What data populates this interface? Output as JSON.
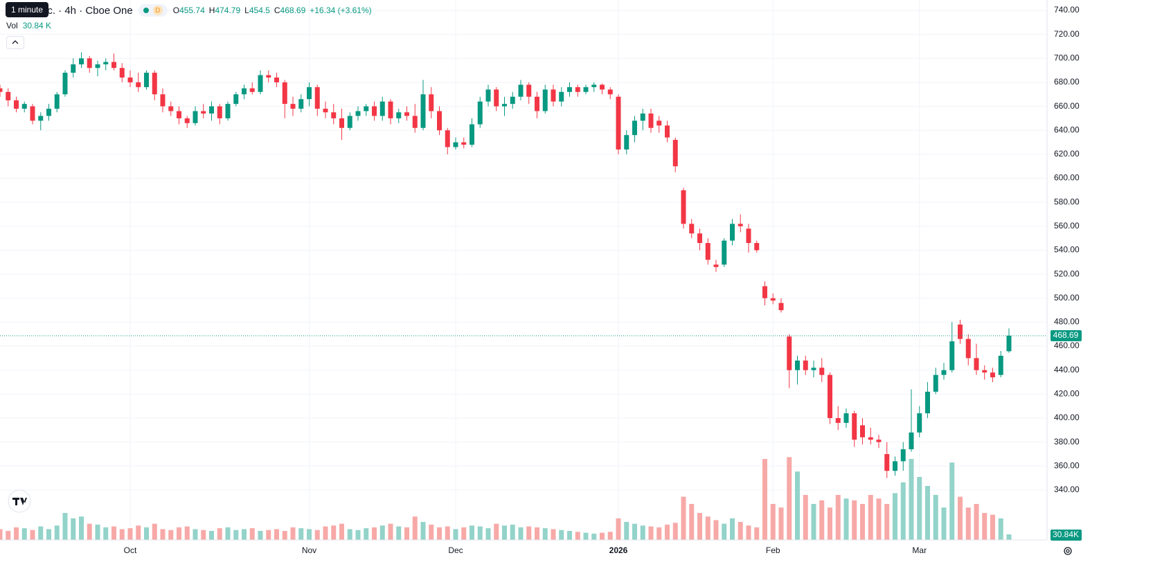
{
  "chart_data": {
    "type": "candlestick",
    "title": "nc. · 4h · Cboe One",
    "tooltip": "1 minute",
    "interval_badge": "D",
    "legend_labels": {
      "open": "O",
      "high": "H",
      "low": "L",
      "close": "C"
    },
    "change": "+16.34 (+3.61%)",
    "volume_name": "Vol",
    "volume_legend_label": "30.84 K",
    "volume_axis_label": "30.84K",
    "up_color": "#089981",
    "down_color": "#f23645",
    "volume_up_color": "#93d3c9",
    "volume_down_color": "#f7a9a7",
    "grid": true,
    "categories": [
      null,
      null,
      null,
      null,
      null,
      null,
      null,
      null,
      null,
      null,
      null,
      null,
      null,
      null,
      null,
      null,
      "Oct",
      null,
      null,
      null,
      null,
      null,
      null,
      null,
      null,
      null,
      null,
      null,
      null,
      null,
      null,
      null,
      null,
      null,
      null,
      null,
      null,
      null,
      "Nov",
      null,
      null,
      null,
      null,
      null,
      null,
      null,
      null,
      null,
      null,
      null,
      null,
      null,
      null,
      null,
      null,
      null,
      "Dec",
      null,
      null,
      null,
      null,
      null,
      null,
      null,
      null,
      null,
      null,
      null,
      null,
      null,
      null,
      null,
      null,
      null,
      null,
      null,
      "2026",
      null,
      null,
      null,
      null,
      null,
      null,
      null,
      null,
      null,
      null,
      null,
      null,
      null,
      null,
      null,
      null,
      null,
      null,
      "Feb",
      null,
      null,
      null,
      null,
      null,
      null,
      null,
      null,
      null,
      null,
      null,
      null,
      null,
      null,
      null,
      null,
      null,
      "Mar",
      null,
      null,
      null,
      null,
      null,
      null,
      null,
      null,
      null,
      null,
      null
    ],
    "open": [
      675,
      672,
      665,
      658,
      660,
      648,
      652,
      658,
      670,
      688,
      695,
      700,
      692,
      695,
      697,
      692,
      684,
      680,
      676,
      688,
      670,
      660,
      656,
      650,
      646,
      656,
      654,
      660,
      650,
      662,
      670,
      675,
      672,
      686,
      684,
      680,
      662,
      658,
      666,
      676,
      658,
      655,
      650,
      642,
      652,
      656,
      660,
      652,
      664,
      650,
      655,
      652,
      642,
      670,
      656,
      640,
      626,
      630,
      628,
      645,
      664,
      674,
      660,
      662,
      668,
      678,
      668,
      656,
      674,
      664,
      672,
      676,
      672,
      676,
      678,
      674,
      668,
      624,
      636,
      648,
      654,
      648,
      644,
      632,
      590,
      562,
      554,
      546,
      528,
      528,
      548,
      562,
      558,
      546,
      510,
      500,
      496,
      468,
      440,
      448,
      440,
      442,
      436,
      400,
      396,
      404,
      394,
      384,
      382,
      370,
      356,
      364,
      374,
      388,
      404,
      422,
      436,
      440,
      478,
      466,
      450,
      440,
      438,
      436,
      455.74
    ],
    "high": [
      678,
      675,
      668,
      664,
      662,
      655,
      662,
      672,
      690,
      700,
      705,
      702,
      698,
      700,
      704,
      696,
      690,
      688,
      690,
      690,
      675,
      664,
      660,
      652,
      660,
      662,
      664,
      662,
      664,
      672,
      678,
      680,
      690,
      690,
      688,
      682,
      668,
      670,
      680,
      678,
      664,
      662,
      658,
      655,
      660,
      662,
      664,
      668,
      666,
      658,
      660,
      662,
      682,
      676,
      660,
      642,
      634,
      634,
      650,
      668,
      678,
      676,
      668,
      672,
      682,
      680,
      672,
      678,
      678,
      676,
      680,
      678,
      678,
      680,
      679,
      676,
      670,
      640,
      652,
      658,
      658,
      652,
      648,
      634,
      592,
      566,
      558,
      550,
      532,
      550,
      566,
      570,
      562,
      548,
      514,
      504,
      500,
      470,
      452,
      452,
      448,
      450,
      438,
      410,
      408,
      406,
      400,
      392,
      386,
      380,
      368,
      380,
      424,
      410,
      430,
      442,
      446,
      480,
      482,
      470,
      462,
      444,
      442,
      456,
      474.79
    ],
    "low": [
      668,
      660,
      655,
      655,
      645,
      640,
      648,
      655,
      668,
      684,
      692,
      688,
      685,
      690,
      690,
      680,
      676,
      672,
      674,
      665,
      655,
      652,
      645,
      642,
      644,
      650,
      648,
      645,
      648,
      660,
      666,
      670,
      670,
      680,
      676,
      650,
      652,
      655,
      660,
      652,
      650,
      645,
      632,
      640,
      648,
      652,
      648,
      648,
      645,
      646,
      648,
      638,
      640,
      650,
      636,
      620,
      624,
      625,
      626,
      642,
      660,
      656,
      652,
      658,
      665,
      662,
      650,
      654,
      660,
      660,
      668,
      668,
      670,
      672,
      670,
      666,
      620,
      620,
      630,
      640,
      638,
      638,
      630,
      605,
      558,
      550,
      540,
      528,
      522,
      526,
      544,
      555,
      538,
      538,
      494,
      495,
      488,
      425,
      428,
      436,
      434,
      430,
      395,
      390,
      392,
      376,
      378,
      378,
      375,
      350,
      352,
      356,
      372,
      384,
      400,
      420,
      432,
      438,
      462,
      444,
      436,
      432,
      430,
      434,
      454.5
    ],
    "close": [
      672,
      665,
      658,
      662,
      648,
      652,
      658,
      670,
      688,
      695,
      700,
      692,
      695,
      697,
      692,
      684,
      680,
      676,
      688,
      670,
      660,
      656,
      650,
      646,
      656,
      654,
      660,
      650,
      662,
      670,
      675,
      672,
      686,
      684,
      680,
      662,
      658,
      666,
      676,
      658,
      655,
      650,
      642,
      652,
      656,
      660,
      652,
      664,
      650,
      655,
      652,
      642,
      670,
      656,
      640,
      626,
      630,
      628,
      645,
      664,
      674,
      660,
      662,
      668,
      678,
      668,
      656,
      674,
      664,
      672,
      676,
      672,
      676,
      678,
      674,
      670,
      624,
      636,
      648,
      654,
      642,
      644,
      634,
      610,
      562,
      554,
      546,
      532,
      526,
      548,
      562,
      560,
      546,
      540,
      500,
      498,
      490,
      440,
      448,
      440,
      442,
      436,
      400,
      396,
      404,
      382,
      384,
      382,
      380,
      356,
      364,
      374,
      388,
      404,
      422,
      436,
      440,
      464,
      466,
      450,
      440,
      438,
      434,
      452,
      468.69
    ],
    "volume": [
      60,
      50,
      70,
      65,
      55,
      75,
      60,
      80,
      150,
      120,
      130,
      90,
      85,
      70,
      75,
      60,
      65,
      80,
      70,
      90,
      60,
      55,
      70,
      75,
      60,
      55,
      50,
      65,
      70,
      55,
      60,
      65,
      50,
      55,
      60,
      50,
      70,
      65,
      60,
      55,
      75,
      80,
      90,
      60,
      55,
      65,
      70,
      80,
      90,
      75,
      70,
      130,
      100,
      85,
      70,
      75,
      60,
      70,
      80,
      75,
      65,
      90,
      80,
      85,
      70,
      75,
      70,
      65,
      60,
      55,
      50,
      45,
      40,
      35,
      40,
      45,
      120,
      100,
      90,
      80,
      75,
      70,
      85,
      95,
      240,
      200,
      150,
      130,
      110,
      90,
      120,
      100,
      80,
      70,
      450,
      200,
      180,
      460,
      380,
      250,
      200,
      220,
      180,
      250,
      230,
      220,
      200,
      250,
      230,
      200,
      260,
      320,
      450,
      350,
      300,
      250,
      180,
      430,
      240,
      180,
      200,
      150,
      140,
      120,
      30.84
    ],
    "vlim": [
      0,
      600
    ],
    "ylim": [
      298.4,
      748.66
    ],
    "yticks": [
      {
        "value": 340,
        "label": "340.00"
      },
      {
        "value": 360,
        "label": "360.00"
      },
      {
        "value": 380,
        "label": "380.00"
      },
      {
        "value": 400,
        "label": "400.00"
      },
      {
        "value": 420,
        "label": "420.00"
      },
      {
        "value": 440,
        "label": "440.00"
      },
      {
        "value": 460,
        "label": "460.00"
      },
      {
        "value": 480,
        "label": "480.00"
      },
      {
        "value": 500,
        "label": "500.00"
      },
      {
        "value": 520,
        "label": "520.00"
      },
      {
        "value": 540,
        "label": "540.00"
      },
      {
        "value": 560,
        "label": "560.00"
      },
      {
        "value": 580,
        "label": "580.00"
      },
      {
        "value": 600,
        "label": "600.00"
      },
      {
        "value": 620,
        "label": "620.00"
      },
      {
        "value": 640,
        "label": "640.00"
      },
      {
        "value": 660,
        "label": "660.00"
      },
      {
        "value": 680,
        "label": "680.00"
      },
      {
        "value": 700,
        "label": "700.00"
      },
      {
        "value": 720,
        "label": "720.00"
      },
      {
        "value": 740,
        "label": "740.00"
      }
    ]
  }
}
